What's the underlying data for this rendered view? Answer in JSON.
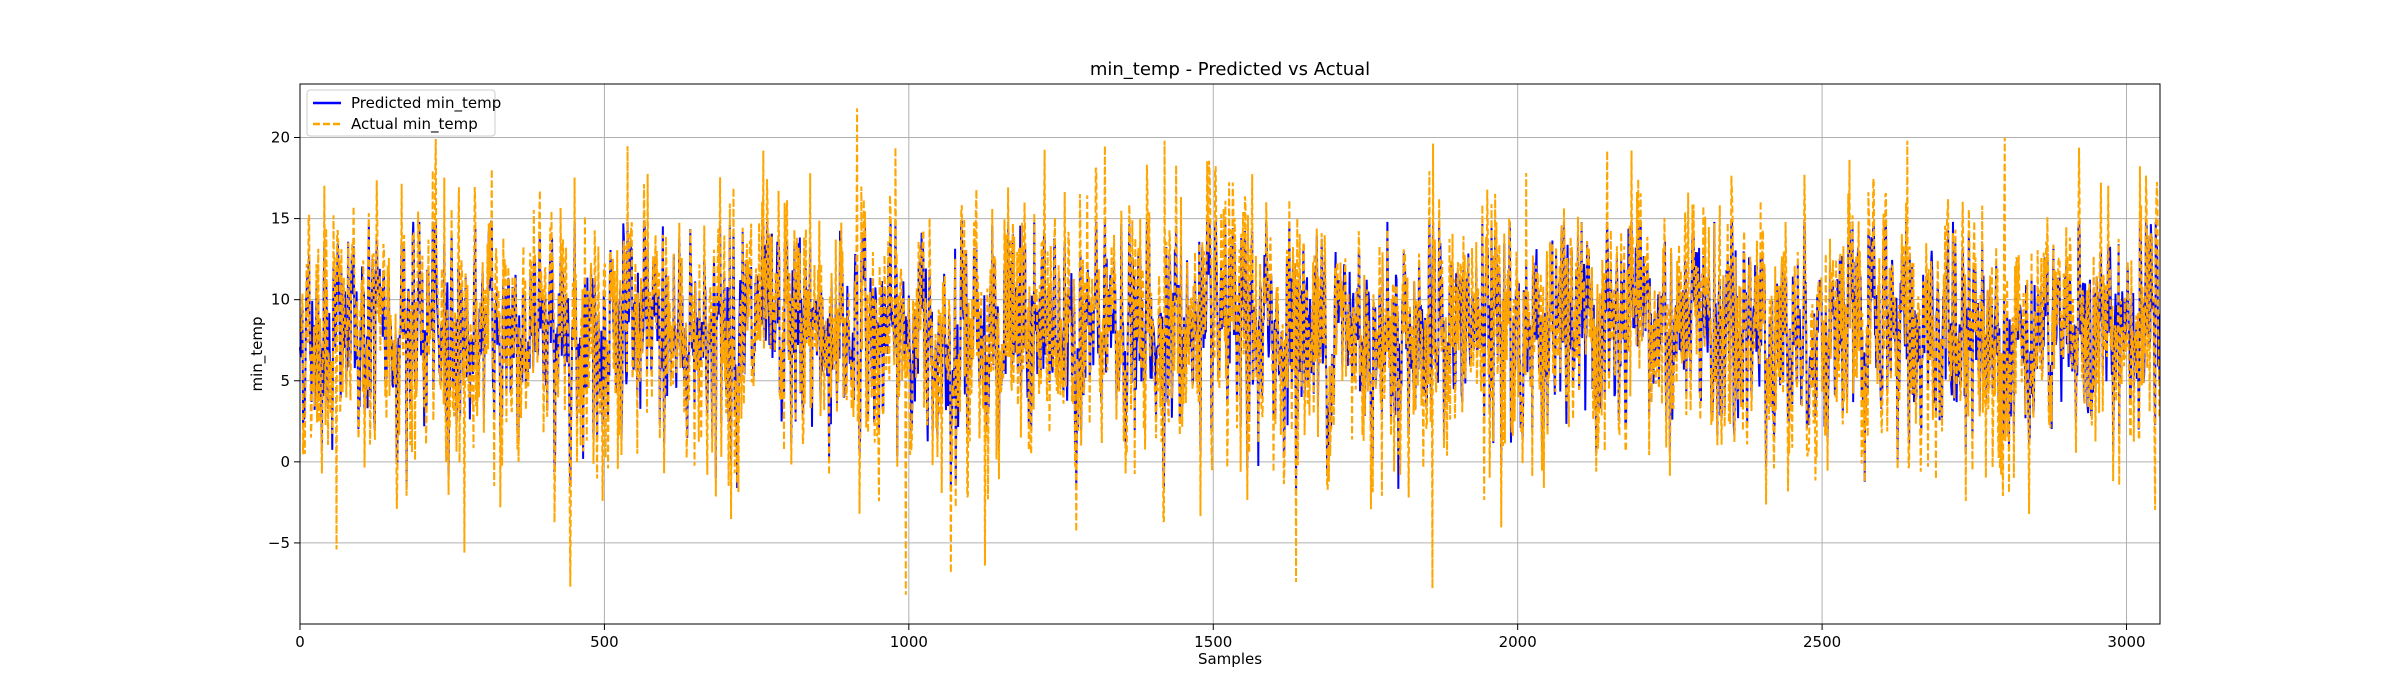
{
  "chart_data": {
    "type": "line",
    "title": "min_temp - Predicted vs Actual",
    "xlabel": "Samples",
    "ylabel": "min_temp",
    "xlim": [
      0,
      3055
    ],
    "ylim": [
      -10,
      23.3
    ],
    "xticks": [
      0,
      500,
      1000,
      1500,
      2000,
      2500,
      3000
    ],
    "yticks": [
      -5,
      0,
      5,
      10,
      15,
      20
    ],
    "grid": true,
    "legend_position": "top-left",
    "num_samples": 3055,
    "series": [
      {
        "name": "Predicted min_temp",
        "color": "#0000ff",
        "style": "solid",
        "mean": 8,
        "amplitude": 4.6,
        "min": -1.7,
        "max": 14.8
      },
      {
        "name": "Actual min_temp",
        "color": "#ffa500",
        "style": "dashed",
        "mean": 8,
        "amplitude": 5.4,
        "min": -8.2,
        "max": 21.8
      }
    ]
  }
}
